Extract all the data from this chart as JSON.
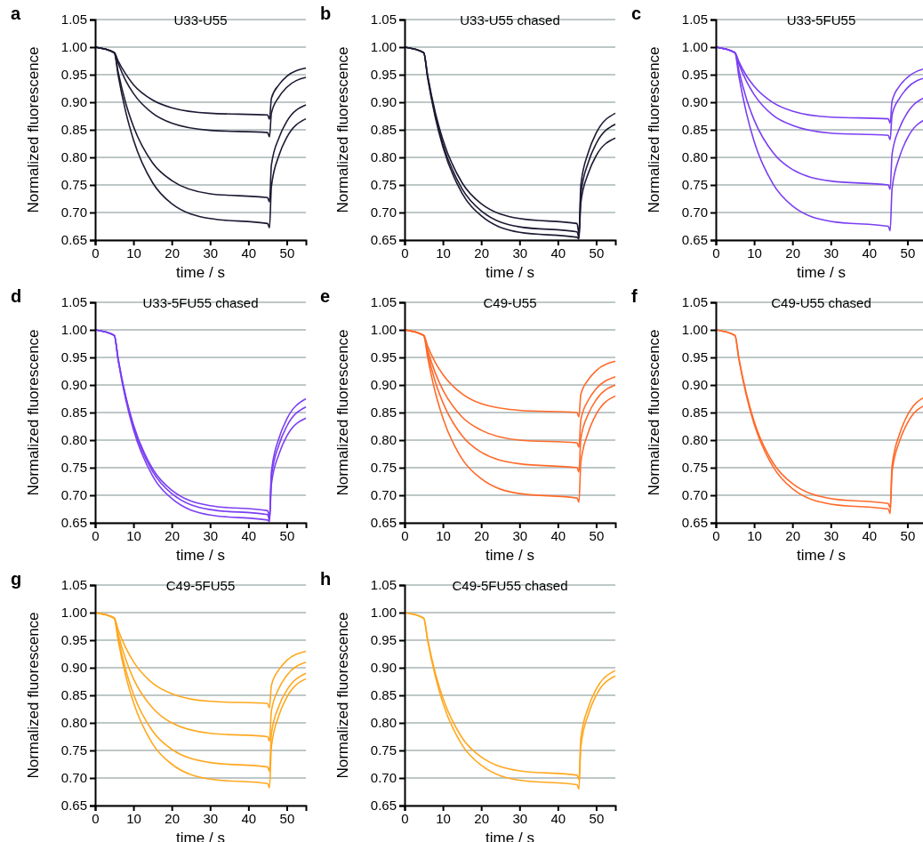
{
  "chart_data": [
    {
      "type": "line",
      "title": "U33-U55",
      "annotations": [
        "a"
      ],
      "xlabel": "time / s",
      "ylabel": "Normalized fluorescence",
      "xlim": [
        0,
        55
      ],
      "ylim": [
        0.65,
        1.05
      ],
      "xticks": [
        0,
        10,
        20,
        30,
        40,
        50
      ],
      "yticks": [
        {
          "value": 0.65,
          "label": "0.65"
        },
        {
          "value": 0.7,
          "label": "0.70"
        },
        {
          "value": 0.75,
          "label": "0.75"
        },
        {
          "value": 0.8,
          "label": "0.80"
        },
        {
          "value": 0.85,
          "label": "0.85"
        },
        {
          "value": 0.9,
          "label": "0.90"
        },
        {
          "value": 0.95,
          "label": "0.95"
        },
        {
          "value": 1,
          "label": "1.00"
        },
        {
          "value": 1.05,
          "label": "1.05"
        }
      ],
      "grid": "y",
      "x": [
        0,
        5,
        6,
        8,
        10,
        15,
        20,
        30,
        45,
        45.5,
        46,
        48,
        50,
        55
      ],
      "series": [
        {
          "color": "#1c1a33",
          "values": [
            1,
            0.99,
            0.975,
            0.951,
            0.932,
            0.904,
            0.89,
            0.88,
            0.877,
            0.869,
            0.907,
            0.932,
            0.947,
            0.962
          ]
        },
        {
          "color": "#1c1a33",
          "values": [
            1,
            0.99,
            0.971,
            0.939,
            0.916,
            0.88,
            0.862,
            0.849,
            0.845,
            0.837,
            0.88,
            0.91,
            0.927,
            0.945
          ]
        },
        {
          "color": "#1c1a33",
          "values": [
            1,
            0.99,
            0.955,
            0.898,
            0.856,
            0.79,
            0.758,
            0.734,
            0.727,
            0.719,
            0.786,
            0.836,
            0.865,
            0.895
          ]
        },
        {
          "color": "#1c1a33",
          "values": [
            1,
            0.99,
            0.949,
            0.882,
            0.832,
            0.754,
            0.716,
            0.689,
            0.68,
            0.672,
            0.747,
            0.804,
            0.836,
            0.87
          ]
        }
      ]
    },
    {
      "type": "line",
      "title": "U33-U55 chased",
      "annotations": [
        "b"
      ],
      "xlabel": "time / s",
      "ylabel": "Normalized fluorescence",
      "xlim": [
        0,
        55
      ],
      "ylim": [
        0.65,
        1.05
      ],
      "xticks": [
        0,
        10,
        20,
        30,
        40,
        50
      ],
      "yticks": [
        {
          "value": 0.65,
          "label": "0.65"
        },
        {
          "value": 0.7,
          "label": "0.70"
        },
        {
          "value": 0.75,
          "label": "0.75"
        },
        {
          "value": 0.8,
          "label": "0.80"
        },
        {
          "value": 0.85,
          "label": "0.85"
        },
        {
          "value": 0.9,
          "label": "0.90"
        },
        {
          "value": 0.95,
          "label": "0.95"
        },
        {
          "value": 1,
          "label": "1.00"
        },
        {
          "value": 1.05,
          "label": "1.05"
        }
      ],
      "grid": "y",
      "x": [
        0,
        5,
        6,
        8,
        10,
        15,
        20,
        30,
        45,
        45.5,
        46,
        48,
        50,
        55
      ],
      "series": [
        {
          "color": "#1c1a33",
          "values": [
            1,
            0.99,
            0.949,
            0.882,
            0.832,
            0.754,
            0.716,
            0.689,
            0.68,
            0.662,
            0.75,
            0.81,
            0.844,
            0.88
          ]
        },
        {
          "color": "#1c1a33",
          "values": [
            1,
            0.99,
            0.947,
            0.877,
            0.824,
            0.743,
            0.703,
            0.674,
            0.665,
            0.655,
            0.733,
            0.792,
            0.825,
            0.86
          ]
        },
        {
          "color": "#1c1a33",
          "values": [
            1,
            0.99,
            0.945,
            0.873,
            0.819,
            0.735,
            0.694,
            0.664,
            0.655,
            0.652,
            0.718,
            0.772,
            0.803,
            0.835
          ]
        }
      ]
    },
    {
      "type": "line",
      "title": "U33-5FU55",
      "annotations": [
        "c"
      ],
      "xlabel": "time / s",
      "ylabel": "Normalized fluorescence",
      "xlim": [
        0,
        55
      ],
      "ylim": [
        0.65,
        1.05
      ],
      "xticks": [
        0,
        10,
        20,
        30,
        40,
        50
      ],
      "yticks": [
        {
          "value": 0.65,
          "label": "0.65"
        },
        {
          "value": 0.7,
          "label": "0.70"
        },
        {
          "value": 0.75,
          "label": "0.75"
        },
        {
          "value": 0.8,
          "label": "0.80"
        },
        {
          "value": 0.85,
          "label": "0.85"
        },
        {
          "value": 0.9,
          "label": "0.90"
        },
        {
          "value": 0.95,
          "label": "0.95"
        },
        {
          "value": 1,
          "label": "1.00"
        },
        {
          "value": 1.05,
          "label": "1.05"
        }
      ],
      "grid": "y",
      "x": [
        0,
        5,
        6,
        8,
        10,
        15,
        20,
        30,
        45,
        45.5,
        46,
        48,
        50,
        55
      ],
      "series": [
        {
          "color": "#7b3ff2",
          "values": [
            1,
            0.99,
            0.974,
            0.948,
            0.929,
            0.899,
            0.884,
            0.873,
            0.87,
            0.862,
            0.902,
            0.93,
            0.945,
            0.962
          ]
        },
        {
          "color": "#7b3ff2",
          "values": [
            1,
            0.99,
            0.97,
            0.938,
            0.914,
            0.876,
            0.858,
            0.844,
            0.84,
            0.832,
            0.877,
            0.908,
            0.926,
            0.945
          ]
        },
        {
          "color": "#7b3ff2",
          "values": [
            1,
            0.99,
            0.958,
            0.906,
            0.868,
            0.808,
            0.778,
            0.757,
            0.75,
            0.742,
            0.806,
            0.854,
            0.881,
            0.91
          ]
        },
        {
          "color": "#7b3ff2",
          "values": [
            1,
            0.99,
            0.948,
            0.88,
            0.829,
            0.751,
            0.712,
            0.684,
            0.675,
            0.667,
            0.743,
            0.802,
            0.835,
            0.87
          ]
        }
      ]
    },
    {
      "type": "line",
      "title": "U33-5FU55 chased",
      "annotations": [
        "d"
      ],
      "xlabel": "time / s",
      "ylabel": "Normalized fluorescence",
      "xlim": [
        0,
        55
      ],
      "ylim": [
        0.65,
        1.05
      ],
      "xticks": [
        0,
        10,
        20,
        30,
        40,
        50
      ],
      "yticks": [
        {
          "value": 0.65,
          "label": "0.65"
        },
        {
          "value": 0.7,
          "label": "0.70"
        },
        {
          "value": 0.75,
          "label": "0.75"
        },
        {
          "value": 0.8,
          "label": "0.80"
        },
        {
          "value": 0.85,
          "label": "0.85"
        },
        {
          "value": 0.9,
          "label": "0.90"
        },
        {
          "value": 0.95,
          "label": "0.95"
        },
        {
          "value": 1,
          "label": "1.00"
        },
        {
          "value": 1.05,
          "label": "1.05"
        }
      ],
      "grid": "y",
      "x": [
        0,
        5,
        6,
        8,
        10,
        15,
        20,
        30,
        45,
        45.5,
        46,
        48,
        50,
        55
      ],
      "series": [
        {
          "color": "#7b3ff2",
          "values": [
            1,
            0.99,
            0.948,
            0.879,
            0.828,
            0.748,
            0.709,
            0.681,
            0.672,
            0.662,
            0.743,
            0.804,
            0.838,
            0.875
          ]
        },
        {
          "color": "#7b3ff2",
          "values": [
            1,
            0.99,
            0.947,
            0.877,
            0.824,
            0.743,
            0.703,
            0.674,
            0.665,
            0.655,
            0.733,
            0.792,
            0.825,
            0.86
          ]
        },
        {
          "color": "#7b3ff2",
          "values": [
            1,
            0.99,
            0.945,
            0.873,
            0.819,
            0.735,
            0.694,
            0.664,
            0.655,
            0.652,
            0.72,
            0.775,
            0.807,
            0.84
          ]
        }
      ]
    },
    {
      "type": "line",
      "title": "C49-U55",
      "annotations": [
        "e"
      ],
      "xlabel": "time / s",
      "ylabel": "Normalized fluorescence",
      "xlim": [
        0,
        55
      ],
      "ylim": [
        0.65,
        1.05
      ],
      "xticks": [
        0,
        10,
        20,
        30,
        40,
        50
      ],
      "yticks": [
        {
          "value": 0.65,
          "label": "0.65"
        },
        {
          "value": 0.7,
          "label": "0.70"
        },
        {
          "value": 0.75,
          "label": "0.75"
        },
        {
          "value": 0.8,
          "label": "0.80"
        },
        {
          "value": 0.85,
          "label": "0.85"
        },
        {
          "value": 0.9,
          "label": "0.90"
        },
        {
          "value": 0.95,
          "label": "0.95"
        },
        {
          "value": 1,
          "label": "1.00"
        },
        {
          "value": 1.05,
          "label": "1.05"
        }
      ],
      "grid": "y",
      "x": [
        0,
        5,
        6,
        8,
        10,
        15,
        20,
        30,
        45,
        45.5,
        46,
        48,
        50,
        55
      ],
      "series": [
        {
          "color": "#ff6a2a",
          "values": [
            1,
            0.99,
            0.971,
            0.941,
            0.919,
            0.884,
            0.866,
            0.854,
            0.85,
            0.842,
            0.883,
            0.91,
            0.926,
            0.943
          ]
        },
        {
          "color": "#ff6a2a",
          "values": [
            1,
            0.99,
            0.964,
            0.922,
            0.891,
            0.842,
            0.818,
            0.8,
            0.795,
            0.787,
            0.837,
            0.873,
            0.893,
            0.915
          ]
        },
        {
          "color": "#ff6a2a",
          "values": [
            1,
            0.99,
            0.958,
            0.906,
            0.868,
            0.808,
            0.778,
            0.757,
            0.75,
            0.742,
            0.803,
            0.848,
            0.873,
            0.9
          ]
        },
        {
          "color": "#ff6a2a",
          "values": [
            1,
            0.99,
            0.951,
            0.887,
            0.84,
            0.766,
            0.73,
            0.703,
            0.695,
            0.687,
            0.76,
            0.815,
            0.847,
            0.88
          ]
        }
      ]
    },
    {
      "type": "line",
      "title": "C49-U55 chased",
      "annotations": [
        "f"
      ],
      "xlabel": "time / s",
      "ylabel": "Normalized fluorescence",
      "xlim": [
        0,
        55
      ],
      "ylim": [
        0.65,
        1.05
      ],
      "xticks": [
        0,
        10,
        20,
        30,
        40,
        50
      ],
      "yticks": [
        {
          "value": 0.65,
          "label": "0.65"
        },
        {
          "value": 0.7,
          "label": "0.70"
        },
        {
          "value": 0.75,
          "label": "0.75"
        },
        {
          "value": 0.8,
          "label": "0.80"
        },
        {
          "value": 0.85,
          "label": "0.85"
        },
        {
          "value": 0.9,
          "label": "0.90"
        },
        {
          "value": 0.95,
          "label": "0.95"
        },
        {
          "value": 1,
          "label": "1.00"
        },
        {
          "value": 1.05,
          "label": "1.05"
        }
      ],
      "grid": "y",
      "x": [
        0,
        5,
        6,
        8,
        10,
        15,
        20,
        30,
        45,
        45.5,
        46,
        48,
        50,
        55
      ],
      "series": [
        {
          "color": "#ff6a2a",
          "values": [
            1,
            0.99,
            0.949,
            0.884,
            0.834,
            0.758,
            0.721,
            0.694,
            0.685,
            0.677,
            0.753,
            0.812,
            0.845,
            0.88
          ]
        },
        {
          "color": "#ff6a2a",
          "values": [
            1,
            0.99,
            0.948,
            0.88,
            0.829,
            0.751,
            0.712,
            0.684,
            0.675,
            0.667,
            0.742,
            0.799,
            0.831,
            0.865
          ]
        }
      ]
    },
    {
      "type": "line",
      "title": "C49-5FU55",
      "annotations": [
        "g"
      ],
      "xlabel": "time / s",
      "ylabel": "Normalized fluorescence",
      "xlim": [
        0,
        55
      ],
      "ylim": [
        0.65,
        1.05
      ],
      "xticks": [
        0,
        10,
        20,
        30,
        40,
        50
      ],
      "yticks": [
        {
          "value": 0.65,
          "label": "0.65"
        },
        {
          "value": 0.7,
          "label": "0.70"
        },
        {
          "value": 0.75,
          "label": "0.75"
        },
        {
          "value": 0.8,
          "label": "0.80"
        },
        {
          "value": 0.85,
          "label": "0.85"
        },
        {
          "value": 0.9,
          "label": "0.90"
        },
        {
          "value": 0.95,
          "label": "0.95"
        },
        {
          "value": 1,
          "label": "1.00"
        },
        {
          "value": 1.05,
          "label": "1.05"
        }
      ],
      "grid": "y",
      "x": [
        0,
        5,
        6,
        8,
        10,
        15,
        20,
        30,
        45,
        45.5,
        46,
        48,
        50,
        55
      ],
      "series": [
        {
          "color": "#ffa81f",
          "values": [
            1,
            0.99,
            0.969,
            0.936,
            0.911,
            0.872,
            0.853,
            0.839,
            0.835,
            0.827,
            0.868,
            0.897,
            0.913,
            0.93
          ]
        },
        {
          "color": "#ffa81f",
          "values": [
            1,
            0.99,
            0.961,
            0.915,
            0.88,
            0.827,
            0.8,
            0.781,
            0.775,
            0.767,
            0.822,
            0.863,
            0.886,
            0.91
          ]
        },
        {
          "color": "#ffa81f",
          "values": [
            1,
            0.99,
            0.954,
            0.896,
            0.852,
            0.785,
            0.752,
            0.728,
            0.72,
            0.712,
            0.78,
            0.831,
            0.859,
            0.89
          ]
        },
        {
          "color": "#ffa81f",
          "values": [
            1,
            0.99,
            0.95,
            0.885,
            0.837,
            0.762,
            0.725,
            0.698,
            0.69,
            0.682,
            0.757,
            0.814,
            0.846,
            0.88
          ]
        }
      ]
    },
    {
      "type": "line",
      "title": "C49-5FU55 chased",
      "annotations": [
        "h"
      ],
      "xlabel": "time / s",
      "ylabel": "Normalized fluorescence",
      "xlim": [
        0,
        55
      ],
      "ylim": [
        0.65,
        1.05
      ],
      "xticks": [
        0,
        10,
        20,
        30,
        40,
        50
      ],
      "yticks": [
        {
          "value": 0.65,
          "label": "0.65"
        },
        {
          "value": 0.7,
          "label": "0.70"
        },
        {
          "value": 0.75,
          "label": "0.75"
        },
        {
          "value": 0.8,
          "label": "0.80"
        },
        {
          "value": 0.85,
          "label": "0.85"
        },
        {
          "value": 0.9,
          "label": "0.90"
        },
        {
          "value": 0.95,
          "label": "0.95"
        },
        {
          "value": 1,
          "label": "1.00"
        },
        {
          "value": 1.05,
          "label": "1.05"
        }
      ],
      "grid": "y",
      "x": [
        0,
        5,
        6,
        8,
        10,
        15,
        20,
        30,
        45,
        45.5,
        46,
        48,
        50,
        55
      ],
      "series": [
        {
          "color": "#ffa81f",
          "values": [
            1,
            0.99,
            0.952,
            0.891,
            0.845,
            0.773,
            0.738,
            0.713,
            0.705,
            0.697,
            0.772,
            0.829,
            0.861,
            0.895
          ]
        },
        {
          "color": "#ffa81f",
          "values": [
            1,
            0.99,
            0.95,
            0.885,
            0.836,
            0.76,
            0.723,
            0.696,
            0.688,
            0.68,
            0.757,
            0.816,
            0.85,
            0.885
          ]
        }
      ]
    }
  ]
}
